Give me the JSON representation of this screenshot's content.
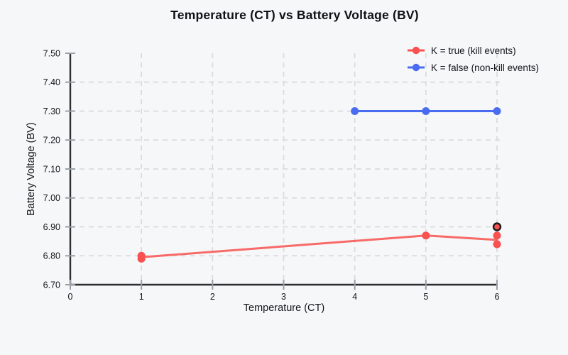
{
  "chart_data": {
    "type": "scatter",
    "title": "Temperature (CT) vs Battery Voltage (BV)",
    "xlabel": "Temperature (CT)",
    "ylabel": "Battery Voltage (BV)",
    "xlim": [
      0,
      6
    ],
    "ylim": [
      6.7,
      7.5
    ],
    "xticks": [
      0,
      1,
      2,
      3,
      4,
      5,
      6
    ],
    "yticks": [
      6.7,
      6.8,
      6.9,
      7.0,
      7.1,
      7.2,
      7.3,
      7.4,
      7.5
    ],
    "y_tick_decimals": 2,
    "grid": true,
    "grid_style": "dashed",
    "legend_position": "top-right",
    "series": [
      {
        "name": "K = true (kill events)",
        "color": "#f8514f",
        "marker_points": [
          [
            1,
            6.79
          ],
          [
            1,
            6.8
          ],
          [
            5,
            6.87
          ],
          [
            6,
            6.84
          ],
          [
            6,
            6.87
          ]
        ],
        "line_points": [
          [
            1,
            6.795
          ],
          [
            5,
            6.87
          ],
          [
            6,
            6.855
          ]
        ],
        "highlight_point": {
          "x": 6,
          "y": 6.9,
          "marker": "black-ring-red-fill"
        }
      },
      {
        "name": "K = false (non-kill events)",
        "color": "#4a6cf0",
        "marker_points": [
          [
            4,
            7.3
          ],
          [
            5,
            7.3
          ],
          [
            6,
            7.3
          ]
        ],
        "line_points": [
          [
            4,
            7.3
          ],
          [
            5,
            7.3
          ],
          [
            6,
            7.3
          ]
        ]
      }
    ],
    "style_colors": {
      "axis": "#2d2e30",
      "tick": "#9aa0a6",
      "gridline": "#d9dadc",
      "text": "#16171a",
      "highlight_ring": "#1c1c1e"
    }
  }
}
